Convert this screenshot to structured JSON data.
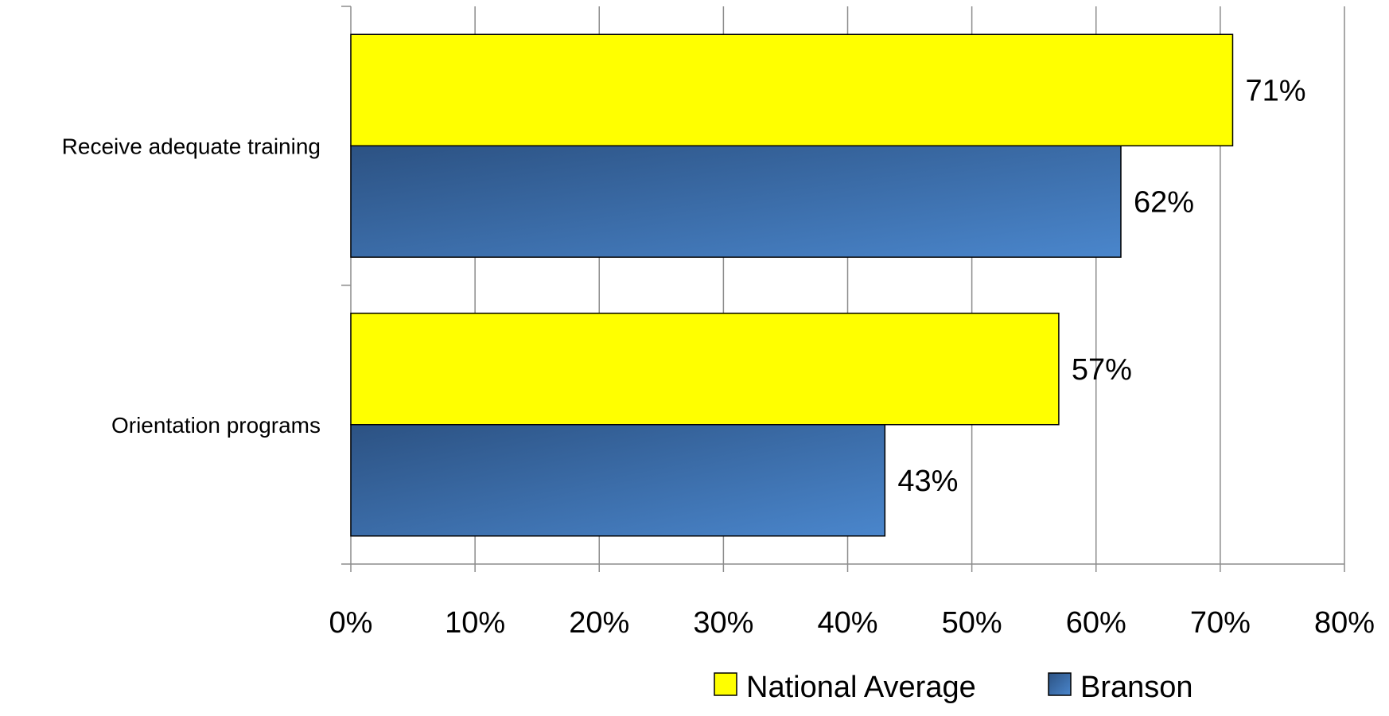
{
  "chart_data": {
    "type": "bar",
    "orientation": "horizontal",
    "categories": [
      "Receive adequate training",
      "Orientation programs"
    ],
    "series": [
      {
        "name": "National Average",
        "values": [
          71,
          57
        ],
        "labels": [
          "71%",
          "57%"
        ],
        "color": "#FFFF00"
      },
      {
        "name": "Branson",
        "values": [
          62,
          43
        ],
        "labels": [
          "62%",
          "43%"
        ],
        "color": "#3D6EAD"
      }
    ],
    "xlim": [
      0,
      80
    ],
    "x_ticks": [
      0,
      10,
      20,
      30,
      40,
      50,
      60,
      70,
      80
    ],
    "x_tick_labels": [
      "0%",
      "10%",
      "20%",
      "30%",
      "40%",
      "50%",
      "60%",
      "70%",
      "80%"
    ],
    "grid": true,
    "legend_position": "bottom-right",
    "title": "",
    "xlabel": "",
    "ylabel": ""
  }
}
